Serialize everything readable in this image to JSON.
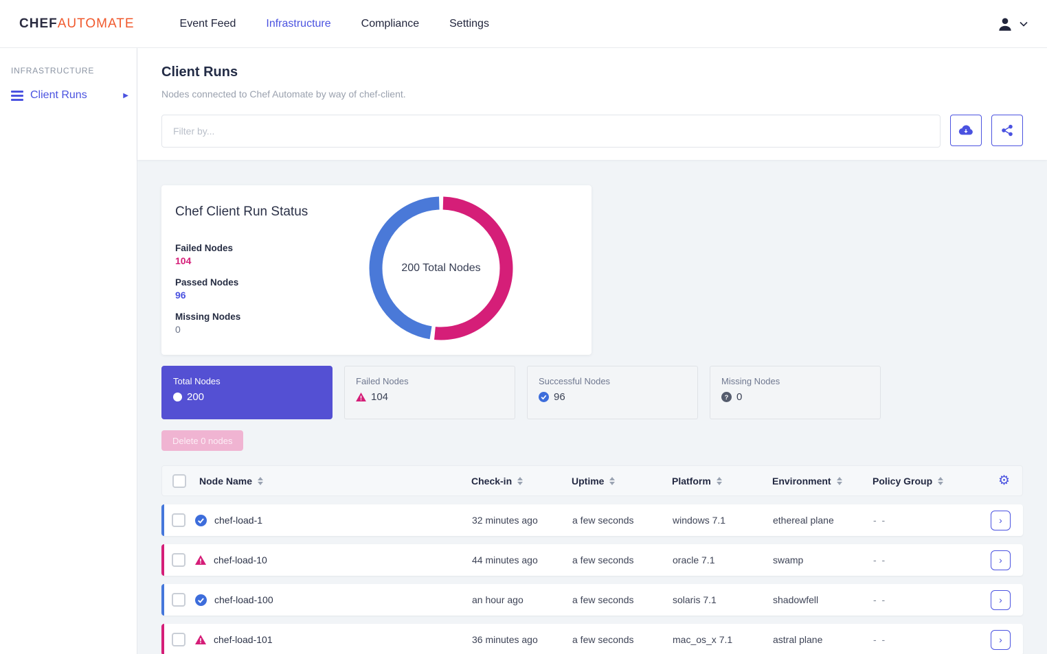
{
  "header": {
    "logo": {
      "chef": "CHEF",
      "automate": "AUTOMATE"
    },
    "nav": [
      {
        "label": "Event Feed",
        "active": false
      },
      {
        "label": "Infrastructure",
        "active": true
      },
      {
        "label": "Compliance",
        "active": false
      },
      {
        "label": "Settings",
        "active": false
      }
    ]
  },
  "sidebar": {
    "section": "INFRASTRUCTURE",
    "items": [
      {
        "label": "Client Runs",
        "active": true
      }
    ]
  },
  "page": {
    "title": "Client Runs",
    "subtitle": "Nodes connected to Chef Automate by way of chef-client."
  },
  "filter": {
    "placeholder": "Filter by..."
  },
  "chart_data": {
    "type": "pie",
    "title": "Chef Client Run Status",
    "center_label": "200 Total Nodes",
    "total": 200,
    "series": [
      {
        "name": "Failed Nodes",
        "value": 104,
        "color": "#d51e78"
      },
      {
        "name": "Passed Nodes",
        "value": 96,
        "color": "#4a79d8"
      },
      {
        "name": "Missing Nodes",
        "value": 0,
        "color": "#6a7287"
      }
    ]
  },
  "status_card": {
    "title": "Chef Client Run Status",
    "stats": [
      {
        "label": "Failed Nodes",
        "value": "104"
      },
      {
        "label": "Passed Nodes",
        "value": "96"
      },
      {
        "label": "Missing Nodes",
        "value": "0"
      }
    ],
    "center_label": "200 Total Nodes"
  },
  "summary_cards": [
    {
      "label": "Total Nodes",
      "value": "200",
      "icon": "circle-icon",
      "selected": true
    },
    {
      "label": "Failed Nodes",
      "value": "104",
      "icon": "warning-icon",
      "selected": false
    },
    {
      "label": "Successful Nodes",
      "value": "96",
      "icon": "check-circle-icon",
      "selected": false
    },
    {
      "label": "Missing Nodes",
      "value": "0",
      "icon": "question-circle-icon",
      "selected": false
    }
  ],
  "delete_button": {
    "label": "Delete 0 nodes"
  },
  "table": {
    "columns": [
      "Node Name",
      "Check-in",
      "Uptime",
      "Platform",
      "Environment",
      "Policy Group"
    ],
    "rows": [
      {
        "status": "success",
        "name": "chef-load-1",
        "checkin": "32 minutes ago",
        "uptime": "a few seconds",
        "platform": "windows 7.1",
        "environment": "ethereal plane",
        "policy_group": "- -"
      },
      {
        "status": "failed",
        "name": "chef-load-10",
        "checkin": "44 minutes ago",
        "uptime": "a few seconds",
        "platform": "oracle 7.1",
        "environment": "swamp",
        "policy_group": "- -"
      },
      {
        "status": "success",
        "name": "chef-load-100",
        "checkin": "an hour ago",
        "uptime": "a few seconds",
        "platform": "solaris 7.1",
        "environment": "shadowfell",
        "policy_group": "- -"
      },
      {
        "status": "failed",
        "name": "chef-load-101",
        "checkin": "36 minutes ago",
        "uptime": "a few seconds",
        "platform": "mac_os_x 7.1",
        "environment": "astral plane",
        "policy_group": "- -"
      }
    ]
  },
  "colors": {
    "primary": "#4a52e0",
    "brand_orange": "#f0592d",
    "failed": "#d51e78",
    "passed_blue": "#4a79d8",
    "selected_card": "#5450d3"
  }
}
